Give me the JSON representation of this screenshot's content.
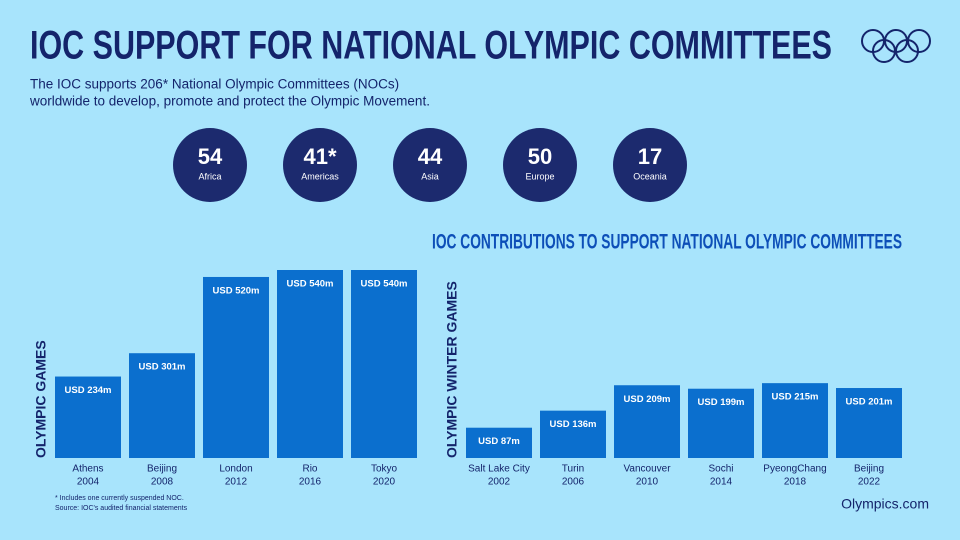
{
  "header": {
    "title": "IOC SUPPORT FOR NATIONAL OLYMPIC COMMITTEES",
    "subtitle": [
      "The IOC supports 206* National Olympic Committees (NOCs)",
      "worldwide to develop, promote and protect the Olympic Movement."
    ]
  },
  "regions": [
    {
      "count": "54",
      "name": "Africa"
    },
    {
      "count": "41*",
      "name": "Americas"
    },
    {
      "count": "44",
      "name": "Asia"
    },
    {
      "count": "50",
      "name": "Europe"
    },
    {
      "count": "17",
      "name": "Oceania"
    }
  ],
  "charts_title": "IOC CONTRIBUTIONS TO SUPPORT NATIONAL OLYMPIC COMMITTEES",
  "chart_data": [
    {
      "type": "bar",
      "axis_label": "OLYMPIC GAMES",
      "color": "#0b6fce",
      "categories": [
        [
          "Athens",
          "2004"
        ],
        [
          "Beijing",
          "2008"
        ],
        [
          "London",
          "2012"
        ],
        [
          "Rio",
          "2016"
        ],
        [
          "Tokyo",
          "2020"
        ]
      ],
      "values": [
        234,
        301,
        520,
        540,
        540
      ],
      "value_labels": [
        "USD 234m",
        "USD 301m",
        "USD 520m",
        "USD 540m",
        "USD 540m"
      ]
    },
    {
      "type": "bar",
      "axis_label": "OLYMPIC WINTER GAMES",
      "color": "#0b6fce",
      "categories": [
        [
          "Salt Lake City",
          "2002"
        ],
        [
          "Turin",
          "2006"
        ],
        [
          "Vancouver",
          "2010"
        ],
        [
          "Sochi",
          "2014"
        ],
        [
          "PyeongChang",
          "2018"
        ],
        [
          "Beijing",
          "2022"
        ]
      ],
      "values": [
        87,
        136,
        209,
        199,
        215,
        201
      ],
      "value_labels": [
        "USD 87m",
        "USD 136m",
        "USD 209m",
        "USD 199m",
        "USD 215m",
        "USD 201m"
      ]
    }
  ],
  "footnotes": [
    "* Includes one currently suspended NOC.",
    "Source: IOC's audited financial statements"
  ],
  "source_site": "Olympics.com"
}
